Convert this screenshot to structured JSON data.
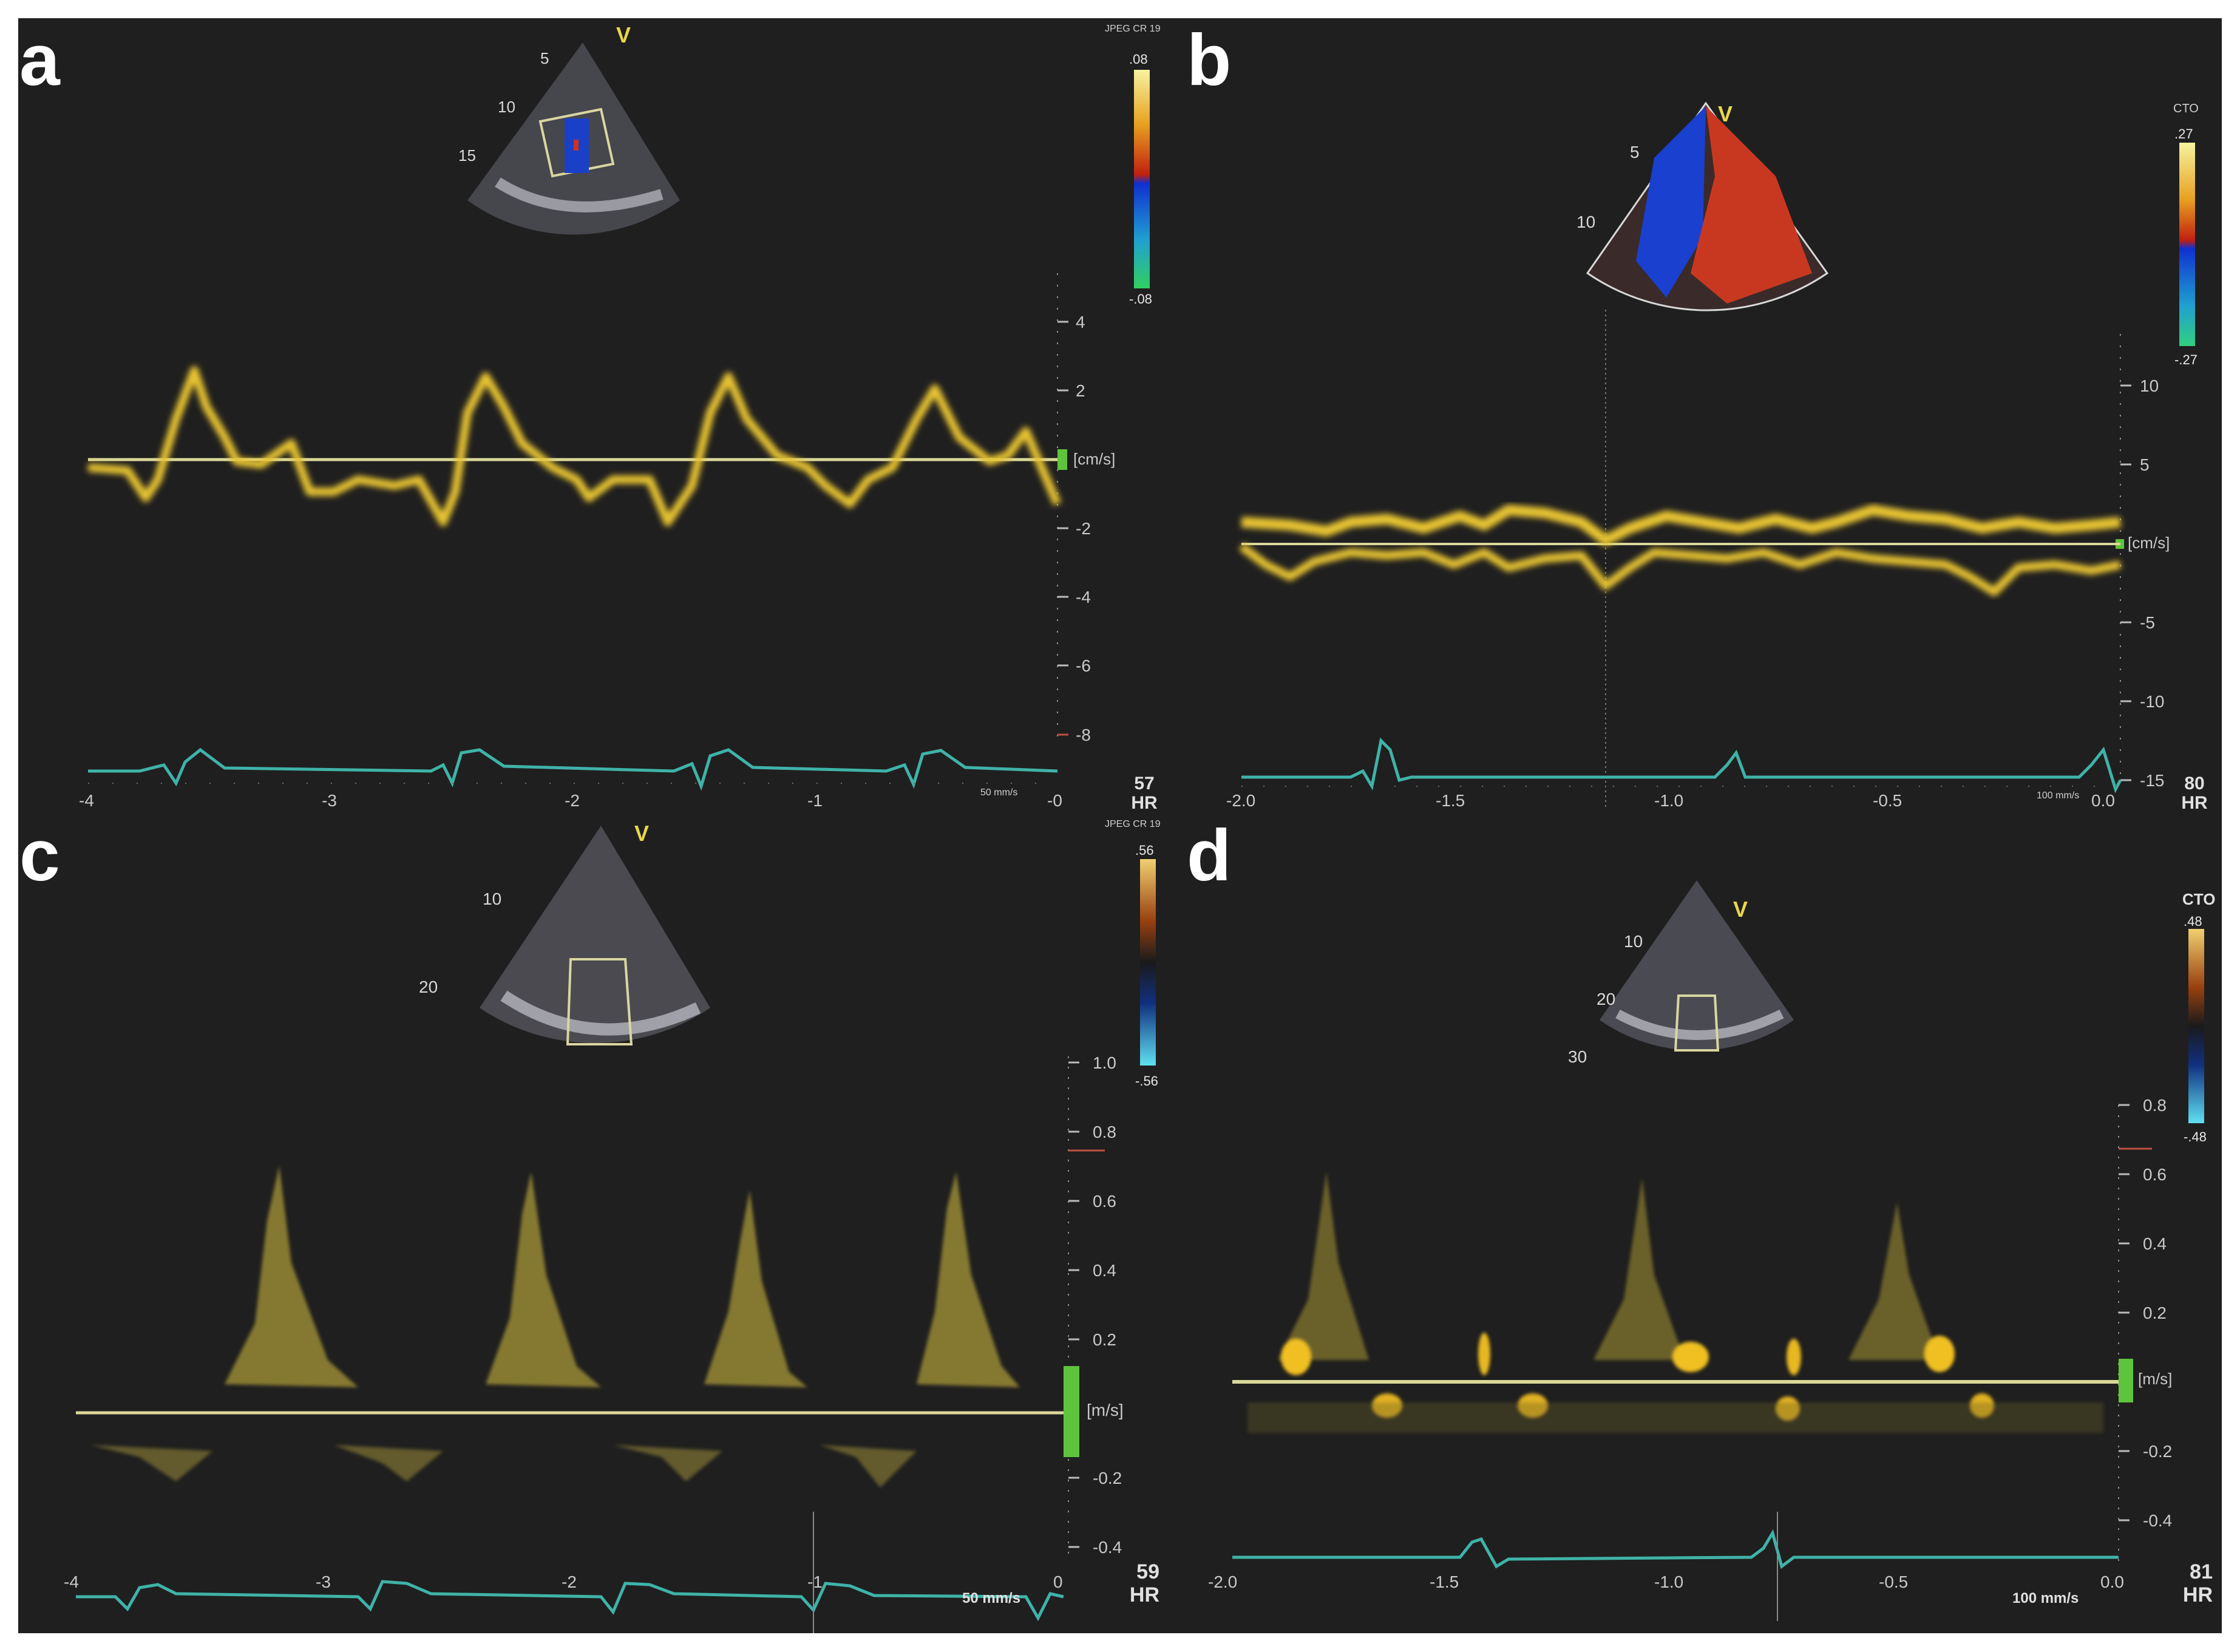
{
  "colors": {
    "background": "#1f1f1f",
    "doppler_trace": "#e8c430",
    "baseline": "#d9d89a",
    "ecg": "#3fb3a8",
    "scale_bar_green": "#5ec43c"
  },
  "panels": {
    "a": {
      "label": "a",
      "header": "JPEG CR 19",
      "color_scale": {
        "top": ".08",
        "bottom": "-.08"
      },
      "depth_marks": [
        "5",
        "10",
        "15"
      ],
      "v_marker": "V",
      "y_ticks": [
        "4",
        "2",
        "-2",
        "-4",
        "-6",
        "-8"
      ],
      "unit": "[cm/s]",
      "x_ticks": [
        "-4",
        "-3",
        "-2",
        "-1",
        "-0"
      ],
      "speed": "50 mm/s",
      "hr_value": "57",
      "hr_label": "HR"
    },
    "b": {
      "label": "b",
      "header": "CTO",
      "color_scale": {
        "top": ".27",
        "bottom": "-.27"
      },
      "depth_marks": [
        "5",
        "10"
      ],
      "v_marker": "V",
      "y_ticks": [
        "10",
        "5",
        "-5",
        "-10",
        "-15"
      ],
      "unit": "[cm/s]",
      "x_ticks": [
        "-2.0",
        "-1.5",
        "-1.0",
        "-0.5",
        "0.0"
      ],
      "speed": "100 mm/s",
      "hr_value": "80",
      "hr_label": "HR"
    },
    "c": {
      "label": "c",
      "header": "JPEG CR 19",
      "color_scale": {
        "top": ".56",
        "bottom": "-.56"
      },
      "depth_marks": [
        "10",
        "20"
      ],
      "v_marker": "V",
      "y_ticks": [
        "1.0",
        "0.8",
        "0.6",
        "0.4",
        "0.2",
        "-0.2",
        "-0.4"
      ],
      "unit": "[m/s]",
      "x_ticks": [
        "-4",
        "-3",
        "-2",
        "-1",
        "0"
      ],
      "speed": "50 mm/s",
      "hr_value": "59",
      "hr_label": "HR"
    },
    "d": {
      "label": "d",
      "header": "CTO",
      "color_scale": {
        "top": ".48",
        "bottom": "-.48"
      },
      "depth_marks": [
        "10",
        "20",
        "30"
      ],
      "v_marker": "V",
      "y_ticks": [
        "0.8",
        "0.6",
        "0.4",
        "0.2",
        "-0.2",
        "-0.4"
      ],
      "unit": "[m/s]",
      "x_ticks": [
        "-2.0",
        "-1.5",
        "-1.0",
        "-0.5",
        "0.0"
      ],
      "speed": "100 mm/s",
      "hr_value": "81",
      "hr_label": "HR"
    }
  }
}
